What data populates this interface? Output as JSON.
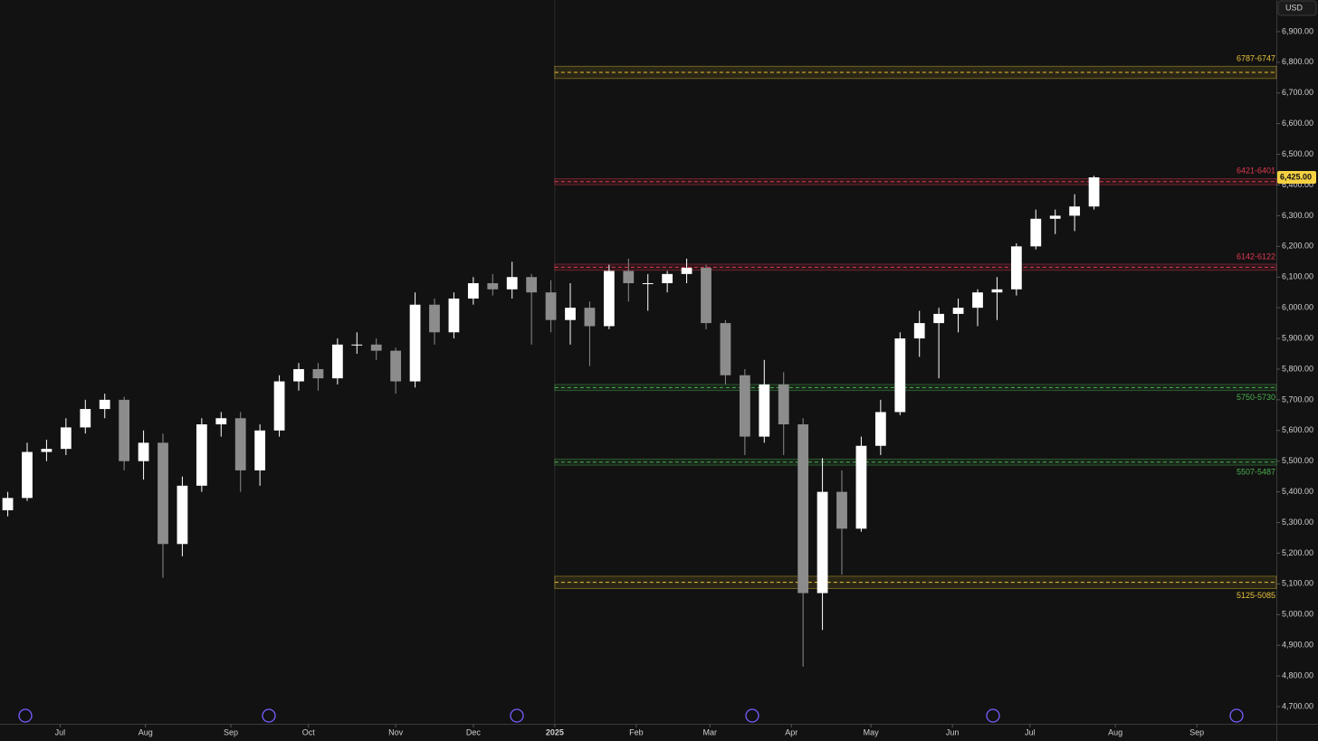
{
  "chart_data": {
    "type": "candlestick",
    "currency": "USD",
    "xlim": [
      -0.4,
      65.4
    ],
    "xticks": [
      {
        "value": 2.7,
        "label": "Jul"
      },
      {
        "value": 7.1,
        "label": "Aug"
      },
      {
        "value": 11.5,
        "label": "Sep"
      },
      {
        "value": 15.5,
        "label": "Oct"
      },
      {
        "value": 20.0,
        "label": "Nov"
      },
      {
        "value": 24.0,
        "label": "Dec"
      },
      {
        "value": 28.2,
        "label": "2025"
      },
      {
        "value": 32.4,
        "label": "Feb"
      },
      {
        "value": 36.2,
        "label": "Mar"
      },
      {
        "value": 40.4,
        "label": "Apr"
      },
      {
        "value": 44.5,
        "label": "May"
      },
      {
        "value": 48.7,
        "label": "Jun"
      },
      {
        "value": 52.7,
        "label": "Jul"
      },
      {
        "value": 57.1,
        "label": "Aug"
      },
      {
        "value": 61.3,
        "label": "Sep"
      }
    ],
    "ylim": [
      4644,
      7003
    ],
    "yticks": [
      {
        "value": 4700,
        "label": "4,700.00"
      },
      {
        "value": 4800,
        "label": "4,800.00"
      },
      {
        "value": 4900,
        "label": "4,900.00"
      },
      {
        "value": 5000,
        "label": "5,000.00"
      },
      {
        "value": 5100,
        "label": "5,100.00"
      },
      {
        "value": 5200,
        "label": "5,200.00"
      },
      {
        "value": 5300,
        "label": "5,300.00"
      },
      {
        "value": 5400,
        "label": "5,400.00"
      },
      {
        "value": 5500,
        "label": "5,500.00"
      },
      {
        "value": 5600,
        "label": "5,600.00"
      },
      {
        "value": 5700,
        "label": "5,700.00"
      },
      {
        "value": 5800,
        "label": "5,800.00"
      },
      {
        "value": 5900,
        "label": "5,900.00"
      },
      {
        "value": 6000,
        "label": "6,000.00"
      },
      {
        "value": 6100,
        "label": "6,100.00"
      },
      {
        "value": 6200,
        "label": "6,200.00"
      },
      {
        "value": 6300,
        "label": "6,300.00"
      },
      {
        "value": 6400,
        "label": "6,400.00"
      },
      {
        "value": 6500,
        "label": "6,500.00"
      },
      {
        "value": 6600,
        "label": "6,600.00"
      },
      {
        "value": 6700,
        "label": "6,700.00"
      },
      {
        "value": 6800,
        "label": "6,800.00"
      },
      {
        "value": 6900,
        "label": "6,900.00"
      }
    ],
    "up_color": "#ffffff",
    "down_color": "#8c8c8c",
    "open": [
      5340,
      5380,
      5530,
      5540,
      5610,
      5670,
      5700,
      5500,
      5560,
      5230,
      5420,
      5620,
      5640,
      5470,
      5600,
      5760,
      5800,
      5770,
      5880,
      5880,
      5860,
      5760,
      6010,
      5920,
      6030,
      6080,
      6060,
      6100,
      6050,
      5960,
      6000,
      5940,
      6120,
      6080,
      6080,
      6110,
      6130,
      5950,
      5780,
      5580,
      5750,
      5620,
      5070,
      5400,
      5280,
      5550,
      5660,
      5900,
      5950,
      5980,
      6000,
      6050,
      6060,
      6200,
      6290,
      6300,
      6330
    ],
    "high": [
      5400,
      5560,
      5570,
      5640,
      5700,
      5720,
      5710,
      5600,
      5590,
      5450,
      5640,
      5660,
      5660,
      5620,
      5780,
      5820,
      5820,
      5900,
      5920,
      5900,
      5870,
      6050,
      6030,
      6050,
      6100,
      6110,
      6150,
      6110,
      6090,
      6080,
      6020,
      6140,
      6160,
      6110,
      6120,
      6160,
      6140,
      5960,
      5800,
      5830,
      5790,
      5640,
      5510,
      5470,
      5580,
      5700,
      5920,
      5990,
      6000,
      6030,
      6060,
      6100,
      6210,
      6320,
      6320,
      6370,
      6430
    ],
    "low": [
      5320,
      5370,
      5500,
      5520,
      5590,
      5640,
      5470,
      5440,
      5120,
      5190,
      5400,
      5580,
      5400,
      5420,
      5580,
      5730,
      5730,
      5750,
      5850,
      5830,
      5720,
      5740,
      5880,
      5900,
      6010,
      6040,
      6030,
      5880,
      5920,
      5880,
      5810,
      5930,
      6020,
      5990,
      6050,
      6080,
      5930,
      5750,
      5520,
      5560,
      5520,
      4830,
      4950,
      5130,
      5270,
      5520,
      5650,
      5840,
      5770,
      5920,
      5940,
      5960,
      6040,
      6190,
      6240,
      6250,
      6320
    ],
    "close": [
      5380,
      5530,
      5540,
      5610,
      5670,
      5700,
      5500,
      5560,
      5230,
      5420,
      5620,
      5640,
      5470,
      5600,
      5760,
      5800,
      5770,
      5880,
      5880,
      5860,
      5760,
      6010,
      5920,
      6030,
      6080,
      6060,
      6100,
      6050,
      5960,
      6000,
      5940,
      6120,
      6080,
      6080,
      6110,
      6130,
      5950,
      5780,
      5580,
      5750,
      5620,
      5070,
      5400,
      5280,
      5550,
      5660,
      5900,
      5950,
      5980,
      6000,
      6050,
      6060,
      6200,
      6290,
      6300,
      6330,
      6425
    ],
    "zones": [
      {
        "label": "6787-6747",
        "high": 6787,
        "low": 6747,
        "color": "#e8c23a"
      },
      {
        "label": "6421-6401",
        "high": 6421,
        "low": 6401,
        "color": "#e0384f"
      },
      {
        "label": "6142-6122",
        "high": 6142,
        "low": 6122,
        "color": "#e0384f"
      },
      {
        "label": "5750-5730",
        "high": 5750,
        "low": 5730,
        "color": "#4caf50"
      },
      {
        "label": "5507-5487",
        "high": 5507,
        "low": 5487,
        "color": "#4caf50"
      },
      {
        "label": "5125-5085",
        "high": 5125,
        "low": 5085,
        "color": "#e8c23a"
      }
    ],
    "last_price": {
      "value": 6425,
      "label": "6,425.00"
    }
  }
}
